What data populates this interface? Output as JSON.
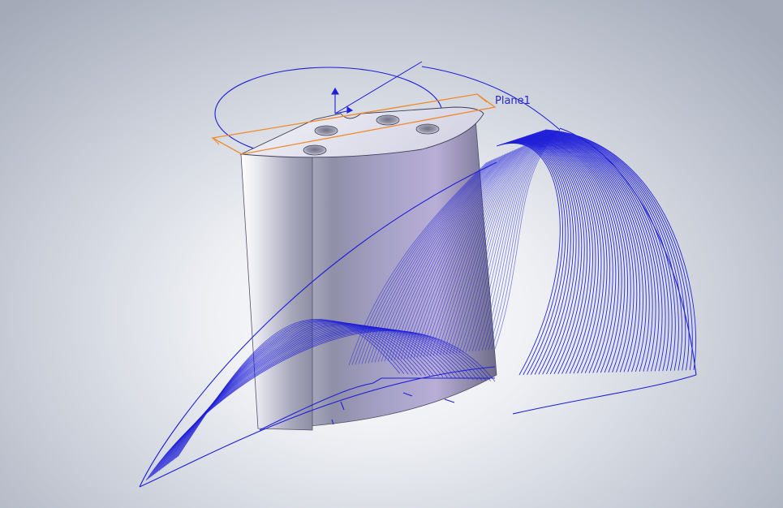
{
  "viewport": {
    "background": "gradient",
    "colors": {
      "background_center": "#ffffff",
      "background_edge": "#a4aab8",
      "sketch_curve": "#1f1fd8",
      "plane_outline": "#f08a2c",
      "plane_label": "#2828c8",
      "solid_body": "#b9bace"
    }
  },
  "scene": {
    "plane_label": "Plane1",
    "body": "cylindrical-segment-with-4-holes",
    "sweep_curves": "blue-wireframe-blade-profiles"
  }
}
